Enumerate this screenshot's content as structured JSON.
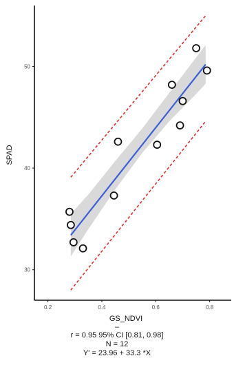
{
  "chart_data": {
    "type": "scatter",
    "xlabel": "GS_NDVI",
    "ylabel": "SPAD",
    "xlim": [
      0.15,
      0.88
    ],
    "ylim": [
      27,
      56
    ],
    "xticks": [
      "0.2",
      "0.4",
      "0.6",
      "0.8"
    ],
    "yticks": [
      "30",
      "40",
      "50"
    ],
    "grid": false,
    "points": [
      {
        "x": 0.28,
        "y": 35.7
      },
      {
        "x": 0.285,
        "y": 34.4
      },
      {
        "x": 0.295,
        "y": 32.7
      },
      {
        "x": 0.33,
        "y": 32.1
      },
      {
        "x": 0.445,
        "y": 37.3
      },
      {
        "x": 0.46,
        "y": 42.6
      },
      {
        "x": 0.605,
        "y": 42.3
      },
      {
        "x": 0.66,
        "y": 48.2
      },
      {
        "x": 0.69,
        "y": 44.2
      },
      {
        "x": 0.7,
        "y": 46.6
      },
      {
        "x": 0.75,
        "y": 51.8
      },
      {
        "x": 0.79,
        "y": 49.6
      }
    ],
    "fit_line": {
      "x": [
        0.285,
        0.785
      ],
      "y": [
        33.4,
        50.2
      ]
    },
    "confidence_band": {
      "x": [
        0.285,
        0.35,
        0.45,
        0.55,
        0.65,
        0.75,
        0.785
      ],
      "lower": [
        31.3,
        34.0,
        37.9,
        41.5,
        44.6,
        47.3,
        48.3
      ],
      "upper": [
        35.5,
        37.4,
        40.7,
        43.9,
        47.4,
        50.9,
        52.1
      ]
    },
    "prediction_bounds": {
      "x": [
        0.285,
        0.785
      ],
      "lower": [
        28.0,
        44.6
      ],
      "upper": [
        39.1,
        55.0
      ]
    },
    "colors": {
      "points_stroke": "#111111",
      "points_fill": "#ffffff",
      "fit_line": "#3a5fd9",
      "band": "#cccccc",
      "prediction": "#e03030",
      "axis": "#111111"
    }
  },
  "stats": {
    "dash": "–",
    "r_line": "r = 0.95 95% CI [0.81, 0.98]",
    "n_line": "N = 12",
    "eq_line": "Y' = 23.96 +  33.3 *X"
  }
}
